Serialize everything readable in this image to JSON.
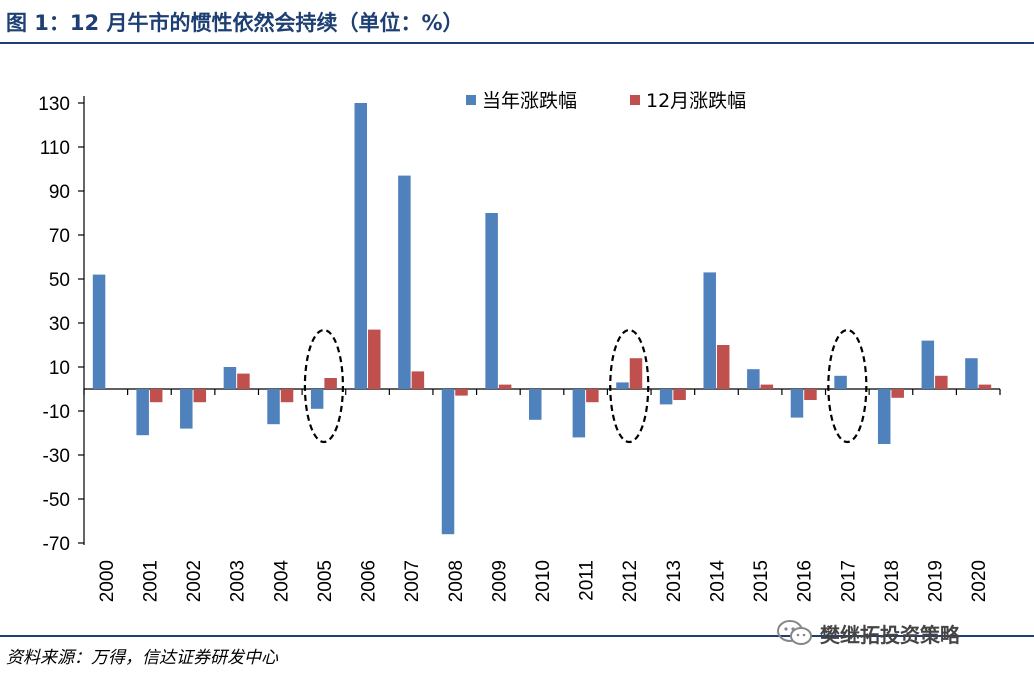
{
  "title": "图 1：12 月牛市的惯性依然会持续（单位：%）",
  "source": "资料来源：万得，信达证券研发中心",
  "watermark": "樊继拓投资策略",
  "colors": {
    "series_annual": "#4f81bd",
    "series_december": "#c0504d",
    "rule": "#1d3f73"
  },
  "chart_data": {
    "type": "bar",
    "categories": [
      "2000",
      "2001",
      "2002",
      "2003",
      "2004",
      "2005",
      "2006",
      "2007",
      "2008",
      "2009",
      "2010",
      "2011",
      "2012",
      "2013",
      "2014",
      "2015",
      "2016",
      "2017",
      "2018",
      "2019",
      "2020"
    ],
    "series": [
      {
        "name": "当年涨跌幅",
        "color": "#4f81bd",
        "values": [
          52,
          -21,
          -18,
          10,
          -16,
          -9,
          130,
          97,
          -66,
          80,
          -14,
          -22,
          3,
          -7,
          53,
          9,
          -13,
          6,
          -25,
          22,
          14
        ]
      },
      {
        "name": "12月涨跌幅",
        "color": "#c0504d",
        "values": [
          0,
          -6,
          -6,
          7,
          -6,
          5,
          27,
          8,
          -3,
          2,
          0,
          -6,
          14,
          -5,
          20,
          2,
          -5,
          0,
          -4,
          6,
          2
        ]
      }
    ],
    "y_ticks": [
      "130",
      "110",
      "90",
      "70",
      "50",
      "30",
      "10",
      "-10",
      "-30",
      "-50",
      "-70"
    ],
    "ylim": [
      -70,
      140
    ],
    "legend_position": "top-right",
    "grid": false,
    "annotations": [
      "2005",
      "2012",
      "2017"
    ]
  }
}
